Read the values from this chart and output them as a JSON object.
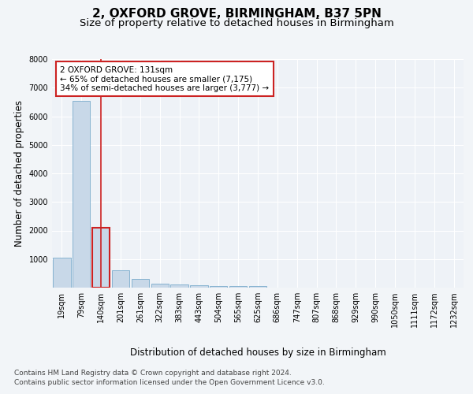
{
  "title": "2, OXFORD GROVE, BIRMINGHAM, B37 5PN",
  "subtitle": "Size of property relative to detached houses in Birmingham",
  "xlabel": "Distribution of detached houses by size in Birmingham",
  "ylabel": "Number of detached properties",
  "categories": [
    "19sqm",
    "79sqm",
    "140sqm",
    "201sqm",
    "261sqm",
    "322sqm",
    "383sqm",
    "443sqm",
    "504sqm",
    "565sqm",
    "625sqm",
    "686sqm",
    "747sqm",
    "807sqm",
    "868sqm",
    "929sqm",
    "990sqm",
    "1050sqm",
    "1111sqm",
    "1172sqm",
    "1232sqm"
  ],
  "values": [
    1050,
    6550,
    2100,
    620,
    310,
    150,
    100,
    70,
    55,
    50,
    50,
    0,
    0,
    0,
    0,
    0,
    0,
    0,
    0,
    0,
    0
  ],
  "bar_color": "#c8d8e8",
  "bar_edge_color": "#7aabcc",
  "highlight_bar_index": 2,
  "highlight_bar_edge_color": "#cc2222",
  "annotation_box_text": "2 OXFORD GROVE: 131sqm\n← 65% of detached houses are smaller (7,175)\n34% of semi-detached houses are larger (3,777) →",
  "annotation_box_color": "#cc2222",
  "ylim": [
    0,
    8000
  ],
  "yticks": [
    0,
    1000,
    2000,
    3000,
    4000,
    5000,
    6000,
    7000,
    8000
  ],
  "footer_line1": "Contains HM Land Registry data © Crown copyright and database right 2024.",
  "footer_line2": "Contains public sector information licensed under the Open Government Licence v3.0.",
  "bg_color": "#f2f5f8",
  "plot_bg_color": "#eef2f7",
  "grid_color": "#ffffff",
  "title_fontsize": 11,
  "subtitle_fontsize": 9.5,
  "axis_label_fontsize": 8.5,
  "tick_fontsize": 7,
  "annotation_fontsize": 7.5,
  "footer_fontsize": 6.5
}
